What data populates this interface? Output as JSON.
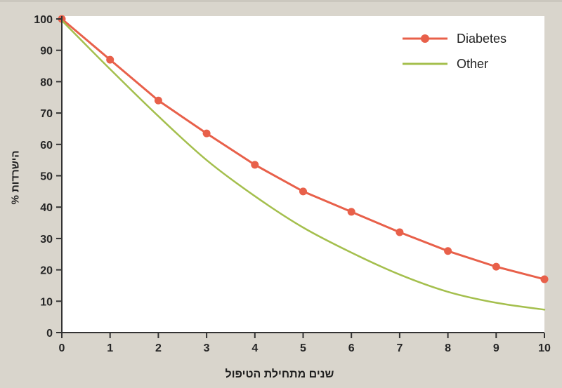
{
  "figure": {
    "background": "#d9d5cc",
    "plot_background": "#ffffff",
    "axis_color": "#333333",
    "tick_text_color": "#262626",
    "legend_text_color": "#222222"
  },
  "chart_data": {
    "type": "line",
    "title": "",
    "xlabel": "שנים מתחילת הטיפול",
    "ylabel": "הישרדות %",
    "x": [
      0,
      1,
      2,
      3,
      4,
      5,
      6,
      7,
      8,
      9,
      10
    ],
    "xticks": [
      "0",
      "1",
      "2",
      "3",
      "4",
      "5",
      "6",
      "7",
      "8",
      "9",
      "10"
    ],
    "yticks": [
      "0",
      "10",
      "20",
      "30",
      "40",
      "50",
      "60",
      "70",
      "80",
      "90",
      "100"
    ],
    "xlim": [
      0,
      10
    ],
    "ylim": [
      0,
      100
    ],
    "grid": false,
    "legend_position": "top-right-inside",
    "series": [
      {
        "name": "Diabetes",
        "color": "#e8604a",
        "marker": "circle",
        "line_style": "straight",
        "values": [
          100,
          87,
          74,
          63.5,
          53.5,
          45,
          38.5,
          32,
          26,
          21,
          17
        ]
      },
      {
        "name": "Other",
        "color": "#a4bf4d",
        "marker": "none",
        "line_style": "smooth",
        "values": [
          99.5,
          84,
          69,
          55,
          43.5,
          33.5,
          25.5,
          18.5,
          13,
          9.5,
          7.3
        ]
      }
    ]
  }
}
